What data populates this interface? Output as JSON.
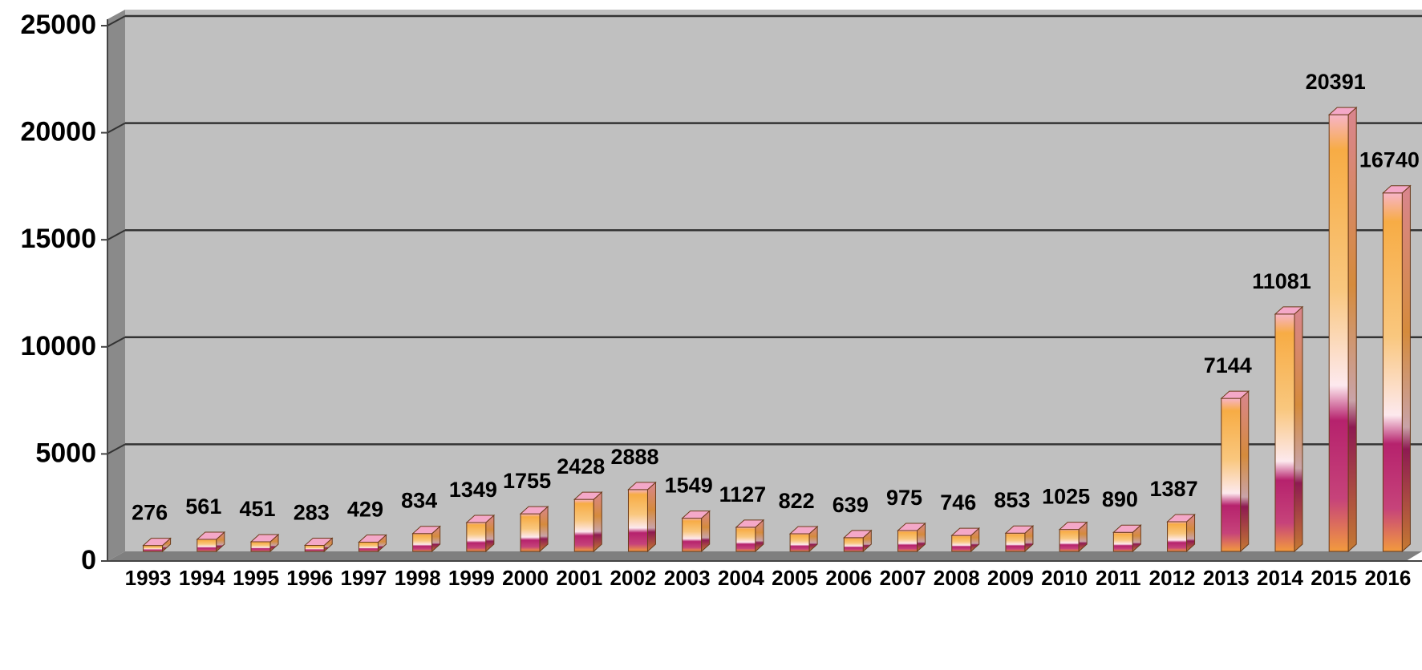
{
  "chart_data": {
    "type": "bar",
    "title": "",
    "xlabel": "",
    "ylabel": "",
    "ylim": [
      0,
      25000
    ],
    "yticks": [
      "0",
      "5000",
      "10000",
      "15000",
      "20000",
      "25000"
    ],
    "grid": true,
    "legend": "none",
    "categories": [
      "1993",
      "1994",
      "1995",
      "1996",
      "1997",
      "1998",
      "1999",
      "2000",
      "2001",
      "2002",
      "2003",
      "2004",
      "2005",
      "2006",
      "2007",
      "2008",
      "2009",
      "2010",
      "2011",
      "2012",
      "2013",
      "2014",
      "2015",
      "2016"
    ],
    "values": [
      276,
      561,
      451,
      283,
      429,
      834,
      1349,
      1755,
      2428,
      2888,
      1549,
      1127,
      822,
      639,
      975,
      746,
      853,
      1025,
      890,
      1387,
      7144,
      11081,
      20391,
      16740
    ],
    "data_labels": [
      "276",
      "561",
      "451",
      "283",
      "429",
      "834",
      "1349",
      "1755",
      "2428",
      "2888",
      "1549",
      "1127",
      "822",
      "639",
      "975",
      "746",
      "853",
      "1025",
      "890",
      "1387",
      "7144",
      "11081",
      "20391",
      "16740"
    ],
    "colors": {
      "plot_background": "#c0c0c0",
      "side_wall": "#8a8a8a",
      "bar_top": "#f4a8c8",
      "bar_orange": "#f7ac45",
      "bar_light": "#fde6ea",
      "bar_magenta": "#b6226d",
      "bar_side": "#c08a3a"
    }
  }
}
